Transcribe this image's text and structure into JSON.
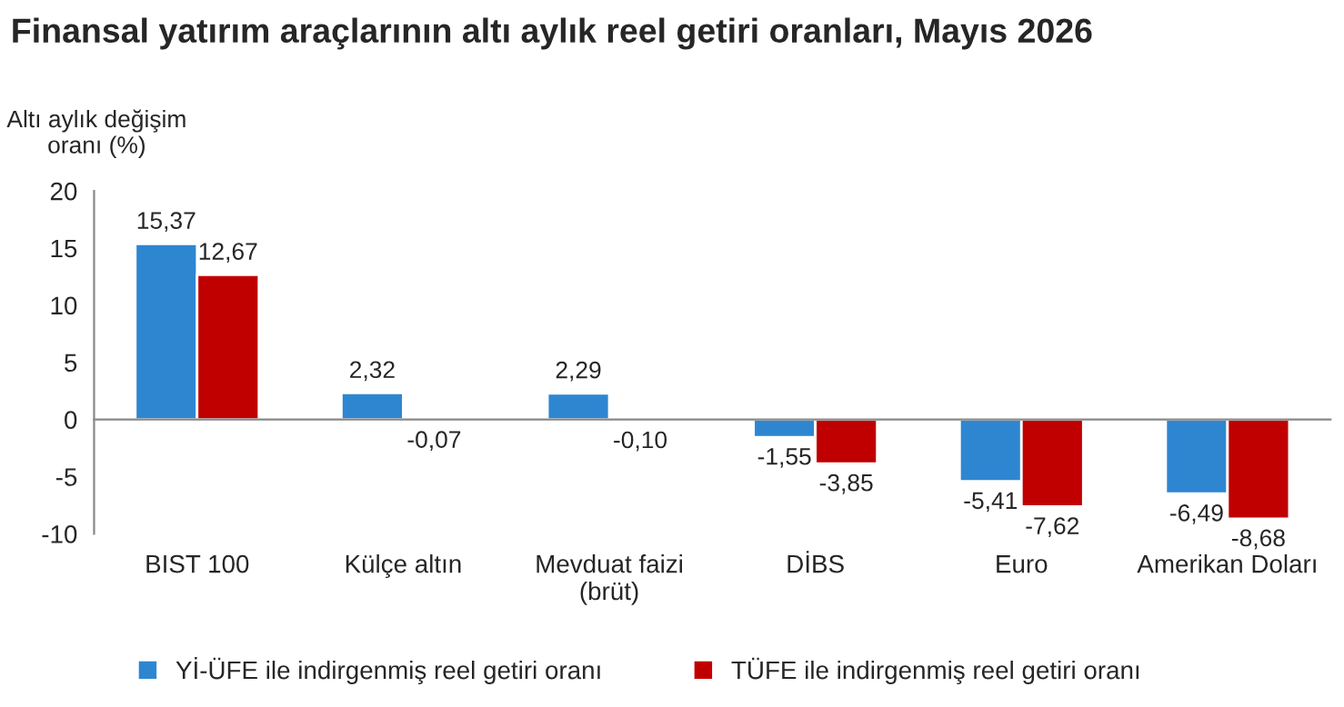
{
  "chart_data": {
    "type": "bar",
    "title": "Finansal yatırım araçlarının altı aylık reel getiri oranları, Mayıs 2026",
    "ylabel": "Altı aylık değişim\noranı (%)",
    "categories": [
      "BIST 100",
      "Külçe altın",
      "Mevduat faizi\n(brüt)",
      "DİBS",
      "Euro",
      "Amerikan Doları"
    ],
    "series": [
      {
        "name": "Yİ-ÜFE ile indirgenmiş reel getiri oranı",
        "color": "#2e86d1",
        "values": [
          15.37,
          2.32,
          2.29,
          -1.55,
          -5.41,
          -6.49
        ],
        "value_labels": [
          "15,37",
          "2,32",
          "2,29",
          "-1,55",
          "-5,41",
          "-6,49"
        ]
      },
      {
        "name": "TÜFE ile indirgenmiş reel getiri oranı",
        "color": "#c00000",
        "values": [
          12.67,
          -0.07,
          -0.1,
          -3.85,
          -7.62,
          -8.68
        ],
        "value_labels": [
          "12,67",
          "-0,07",
          "-0,10",
          "-3,85",
          "-7,62",
          "-8,68"
        ]
      }
    ],
    "ylim": [
      -10,
      20
    ],
    "yticks": [
      -10,
      -5,
      0,
      5,
      10,
      15,
      20
    ],
    "legend": "bottom"
  }
}
